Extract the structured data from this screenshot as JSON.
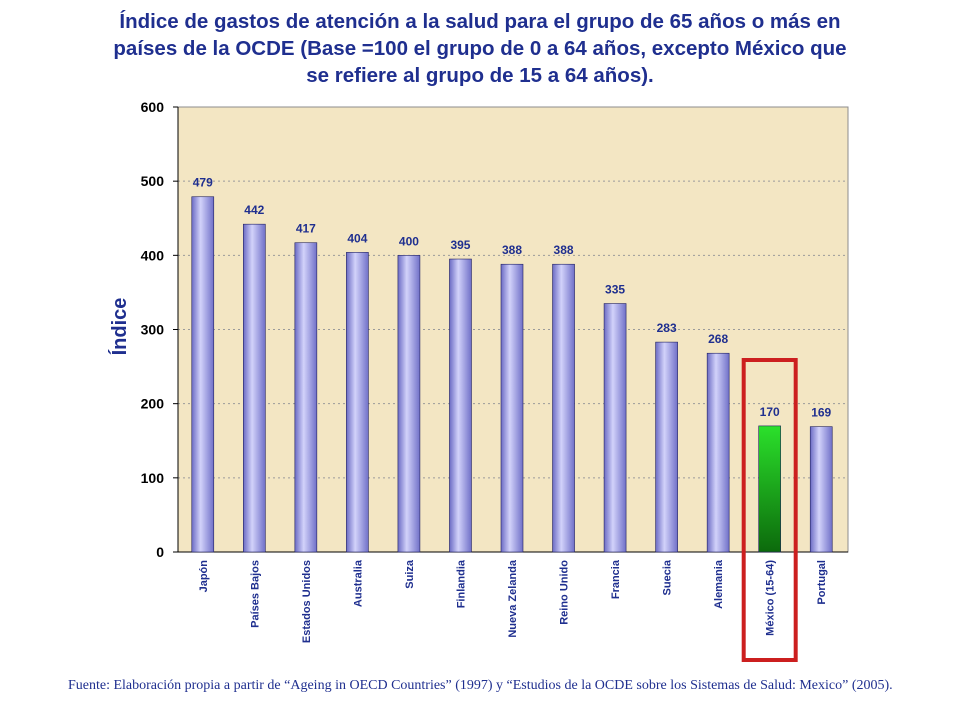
{
  "title_lines": [
    "Índice de gastos de atención a la salud para el grupo de 65 años o más en",
    "países de la OCDE (Base =100 el grupo de 0 a 64 años, excepto México que",
    "se refiere al grupo de 15 a 64 años)."
  ],
  "source": "Fuente: Elaboración propia a partir de “Ageing in OECD Countries” (1997) y “Estudios de la OCDE sobre los Sistemas de Salud: Mexico” (2005).",
  "colors": {
    "plot_bg": "#f3e6c3",
    "bar": "#9a9ae6",
    "highlight_bar": "#1faa1f",
    "highlight_box": "#cc1f1f",
    "text": "#1f2f8f"
  },
  "chart_data": {
    "type": "bar",
    "title": "Índice de gastos de atención a la salud para el grupo de 65 años o más en países de la OCDE (Base =100 el grupo de 0 a 64 años, excepto México que se refiere al grupo de 15 a 64 años).",
    "xlabel": "",
    "ylabel": "Índice",
    "ylim": [
      0,
      600
    ],
    "yticks": [
      0,
      100,
      200,
      300,
      400,
      500,
      600
    ],
    "grid": true,
    "legend": "none",
    "categories": [
      "Japón",
      "Países Bajos",
      "Estados Unidos",
      "Australia",
      "Suiza",
      "Finlandia",
      "Nueva Zelanda",
      "Reino Unido",
      "Francia",
      "Suecia",
      "Alemania",
      "México (15-64)",
      "Portugal"
    ],
    "values": [
      479,
      442,
      417,
      404,
      400,
      395,
      388,
      388,
      335,
      283,
      268,
      170,
      169
    ],
    "highlight_index": 11
  }
}
